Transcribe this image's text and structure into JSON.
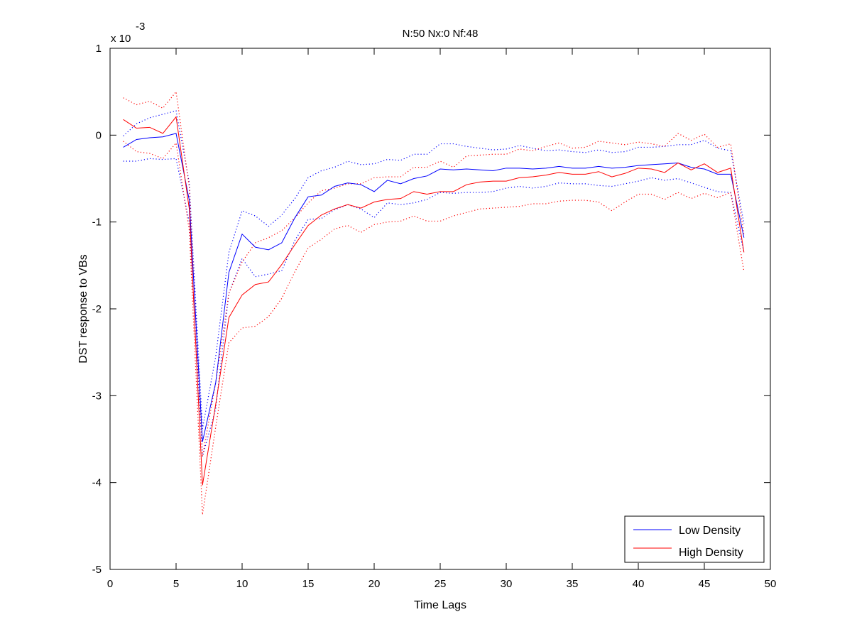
{
  "chart_data": {
    "type": "line",
    "title": "N:50 Nx:0 Nf:48",
    "xlabel": "Time Lags",
    "ylabel": "DST response to VBs",
    "scale_note": "x 10",
    "scale_exponent": "-3",
    "xlim": [
      0,
      50
    ],
    "ylim": [
      -5,
      1
    ],
    "xticks": [
      0,
      5,
      10,
      15,
      20,
      25,
      30,
      35,
      40,
      45,
      50
    ],
    "yticks": [
      -5,
      -4,
      -3,
      -2,
      -1,
      0,
      1
    ],
    "x": [
      1,
      2,
      3,
      4,
      5,
      6,
      7,
      8,
      9,
      10,
      11,
      12,
      13,
      14,
      15,
      16,
      17,
      18,
      19,
      20,
      21,
      22,
      23,
      24,
      25,
      26,
      27,
      28,
      29,
      30,
      31,
      32,
      33,
      34,
      35,
      36,
      37,
      38,
      39,
      40,
      41,
      42,
      43,
      44,
      45,
      46,
      47,
      48
    ],
    "series": [
      {
        "name": "Low Density",
        "color": "#0000ff",
        "style": "solid",
        "values": [
          -0.14,
          -0.05,
          -0.03,
          -0.02,
          0.02,
          -0.75,
          -3.53,
          -2.85,
          -1.58,
          -1.14,
          -1.29,
          -1.32,
          -1.24,
          -0.95,
          -0.71,
          -0.69,
          -0.59,
          -0.55,
          -0.57,
          -0.65,
          -0.52,
          -0.56,
          -0.5,
          -0.47,
          -0.39,
          -0.4,
          -0.39,
          -0.4,
          -0.41,
          -0.38,
          -0.38,
          -0.39,
          -0.38,
          -0.36,
          -0.38,
          -0.38,
          -0.36,
          -0.38,
          -0.37,
          -0.35,
          -0.34,
          -0.33,
          -0.32,
          -0.37,
          -0.39,
          -0.45,
          -0.45,
          -1.18
        ]
      },
      {
        "name": "High Density",
        "color": "#ff0000",
        "style": "solid",
        "values": [
          0.18,
          0.08,
          0.09,
          0.02,
          0.21,
          -0.85,
          -4.03,
          -3.1,
          -2.1,
          -1.84,
          -1.72,
          -1.69,
          -1.49,
          -1.26,
          -1.04,
          -0.92,
          -0.85,
          -0.8,
          -0.84,
          -0.77,
          -0.74,
          -0.73,
          -0.65,
          -0.68,
          -0.65,
          -0.65,
          -0.57,
          -0.54,
          -0.53,
          -0.53,
          -0.49,
          -0.48,
          -0.46,
          -0.43,
          -0.45,
          -0.45,
          -0.42,
          -0.48,
          -0.44,
          -0.38,
          -0.39,
          -0.43,
          -0.32,
          -0.4,
          -0.33,
          -0.43,
          -0.38,
          -1.35
        ]
      },
      {
        "name": "",
        "color": "#0000ff",
        "style": "dotted",
        "values": [
          -0.01,
          0.13,
          0.2,
          0.24,
          0.28,
          -0.55,
          -3.38,
          -2.55,
          -1.35,
          -0.87,
          -0.93,
          -1.05,
          -0.92,
          -0.73,
          -0.49,
          -0.41,
          -0.37,
          -0.3,
          -0.34,
          -0.33,
          -0.28,
          -0.29,
          -0.22,
          -0.22,
          -0.1,
          -0.1,
          -0.13,
          -0.15,
          -0.17,
          -0.16,
          -0.12,
          -0.15,
          -0.18,
          -0.17,
          -0.19,
          -0.2,
          -0.17,
          -0.2,
          -0.19,
          -0.14,
          -0.14,
          -0.13,
          -0.11,
          -0.11,
          -0.06,
          -0.15,
          -0.18,
          -1.02
        ]
      },
      {
        "name": "",
        "color": "#0000ff",
        "style": "dotted",
        "values": [
          -0.3,
          -0.3,
          -0.27,
          -0.28,
          -0.27,
          -1.0,
          -3.7,
          -3.15,
          -1.82,
          -1.42,
          -1.63,
          -1.6,
          -1.56,
          -1.21,
          -0.97,
          -0.96,
          -0.86,
          -0.8,
          -0.85,
          -0.95,
          -0.78,
          -0.8,
          -0.78,
          -0.74,
          -0.66,
          -0.67,
          -0.66,
          -0.66,
          -0.65,
          -0.61,
          -0.59,
          -0.61,
          -0.59,
          -0.55,
          -0.56,
          -0.56,
          -0.58,
          -0.59,
          -0.56,
          -0.53,
          -0.49,
          -0.52,
          -0.5,
          -0.55,
          -0.6,
          -0.65,
          -0.66,
          -1.35
        ]
      },
      {
        "name": "",
        "color": "#ff0000",
        "style": "dotted",
        "values": [
          0.43,
          0.35,
          0.39,
          0.31,
          0.5,
          -0.6,
          -3.7,
          -2.85,
          -1.82,
          -1.46,
          -1.24,
          -1.18,
          -1.1,
          -0.95,
          -0.78,
          -0.64,
          -0.61,
          -0.56,
          -0.56,
          -0.49,
          -0.48,
          -0.48,
          -0.37,
          -0.37,
          -0.3,
          -0.37,
          -0.24,
          -0.23,
          -0.22,
          -0.22,
          -0.16,
          -0.18,
          -0.13,
          -0.09,
          -0.15,
          -0.14,
          -0.07,
          -0.09,
          -0.11,
          -0.08,
          -0.1,
          -0.13,
          0.02,
          -0.06,
          0.01,
          -0.14,
          -0.1,
          -1.15
        ]
      },
      {
        "name": "",
        "color": "#ff0000",
        "style": "dotted",
        "values": [
          -0.07,
          -0.19,
          -0.21,
          -0.27,
          -0.09,
          -1.1,
          -4.37,
          -3.36,
          -2.39,
          -2.22,
          -2.2,
          -2.09,
          -1.88,
          -1.57,
          -1.3,
          -1.2,
          -1.08,
          -1.04,
          -1.12,
          -1.03,
          -1.0,
          -0.99,
          -0.93,
          -0.99,
          -0.99,
          -0.93,
          -0.89,
          -0.85,
          -0.84,
          -0.83,
          -0.82,
          -0.79,
          -0.79,
          -0.76,
          -0.75,
          -0.75,
          -0.77,
          -0.87,
          -0.77,
          -0.68,
          -0.68,
          -0.74,
          -0.66,
          -0.73,
          -0.67,
          -0.72,
          -0.66,
          -1.57
        ]
      }
    ],
    "legend": {
      "location": "bottom-right",
      "entries": [
        {
          "label": "Low Density",
          "color": "#0000ff"
        },
        {
          "label": "High Density",
          "color": "#ff0000"
        }
      ]
    },
    "grid": false
  }
}
